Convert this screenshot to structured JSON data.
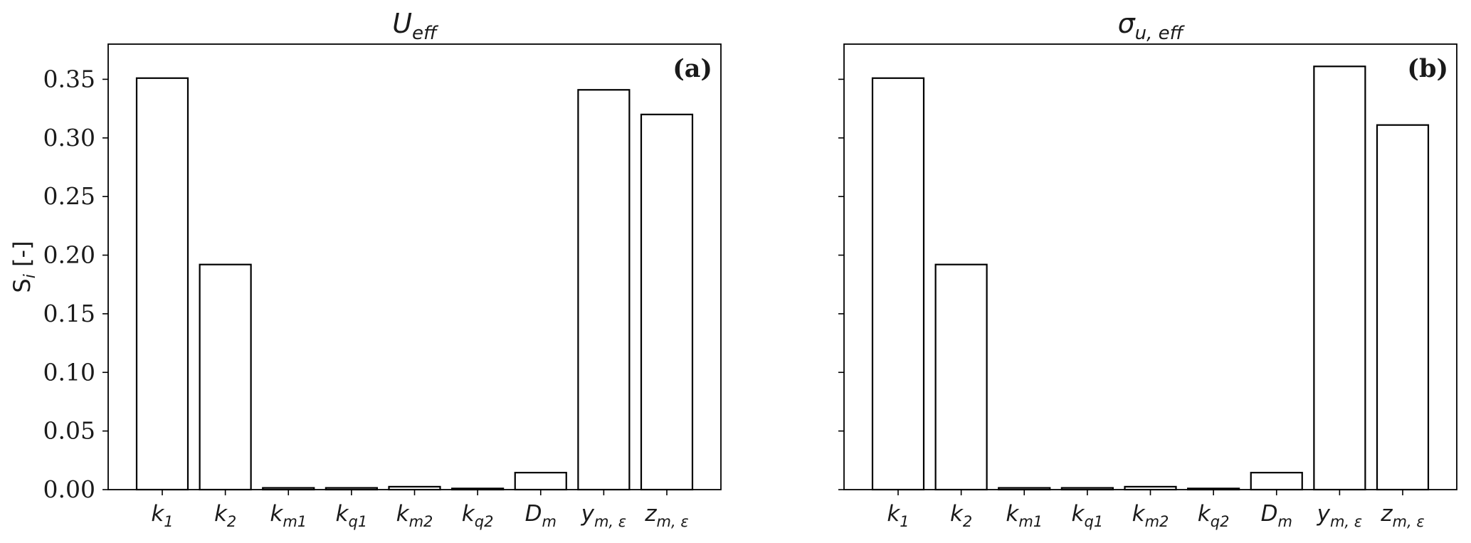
{
  "chart_data": [
    {
      "type": "bar",
      "title": "U",
      "title_sub": "eff",
      "panel_label": "(a)",
      "ylabel": "S",
      "ylabel_sub": "i",
      "ylabel_unit": " [-]",
      "ylim": [
        0,
        0.38
      ],
      "yticks": [
        "0.00",
        "0.05",
        "0.10",
        "0.15",
        "0.20",
        "0.25",
        "0.30",
        "0.35"
      ],
      "show_ytick_labels": true,
      "categories": [
        {
          "base": "k",
          "sub": "1"
        },
        {
          "base": "k",
          "sub": "2"
        },
        {
          "base": "k",
          "sub": "m1"
        },
        {
          "base": "k",
          "sub": "q1"
        },
        {
          "base": "k",
          "sub": "m2"
        },
        {
          "base": "k",
          "sub": "q2"
        },
        {
          "base": "D",
          "sub": "m"
        },
        {
          "base": "y",
          "sub": "m, ε"
        },
        {
          "base": "z",
          "sub": "m, ε"
        }
      ],
      "values": [
        0.351,
        0.192,
        0.0015,
        0.0015,
        0.0025,
        0.001,
        0.0145,
        0.341,
        0.32
      ],
      "bar_fill": "#ffffff",
      "bar_stroke": "#000000",
      "grid": false
    },
    {
      "type": "bar",
      "title": "σ",
      "title_sub": "u, eff",
      "panel_label": "(b)",
      "ylim": [
        0,
        0.38
      ],
      "yticks": [
        "0.00",
        "0.05",
        "0.10",
        "0.15",
        "0.20",
        "0.25",
        "0.30",
        "0.35"
      ],
      "show_ytick_labels": false,
      "categories": [
        {
          "base": "k",
          "sub": "1"
        },
        {
          "base": "k",
          "sub": "2"
        },
        {
          "base": "k",
          "sub": "m1"
        },
        {
          "base": "k",
          "sub": "q1"
        },
        {
          "base": "k",
          "sub": "m2"
        },
        {
          "base": "k",
          "sub": "q2"
        },
        {
          "base": "D",
          "sub": "m"
        },
        {
          "base": "y",
          "sub": "m, ε"
        },
        {
          "base": "z",
          "sub": "m, ε"
        }
      ],
      "values": [
        0.351,
        0.192,
        0.0015,
        0.0015,
        0.0025,
        0.001,
        0.0145,
        0.361,
        0.311
      ],
      "bar_fill": "#ffffff",
      "bar_stroke": "#000000",
      "grid": false
    }
  ]
}
